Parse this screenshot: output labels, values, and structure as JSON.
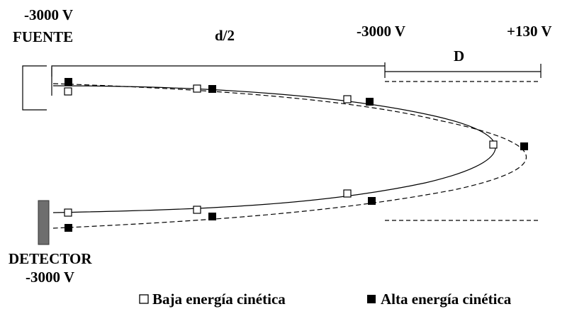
{
  "labels": {
    "source_voltage": "-3000 V",
    "source_name": "FUENTE",
    "half_distance": "d/2",
    "mirror_entry_voltage": "-3000 V",
    "mirror_end_voltage": "+130 V",
    "mirror_length": "D",
    "detector_name": "DETECTOR",
    "detector_voltage": "-3000 V"
  },
  "legend": {
    "low_energy": "Baja energía cinética",
    "high_energy": "Alta energía cinética"
  },
  "colors": {
    "ink": "#000000",
    "detector_fill": "#6e6e6e",
    "open_marker_fill": "#ffffff",
    "filled_marker_fill": "#000000"
  },
  "icons": {
    "low_energy_marker": "open-square-icon",
    "high_energy_marker": "filled-square-icon"
  }
}
